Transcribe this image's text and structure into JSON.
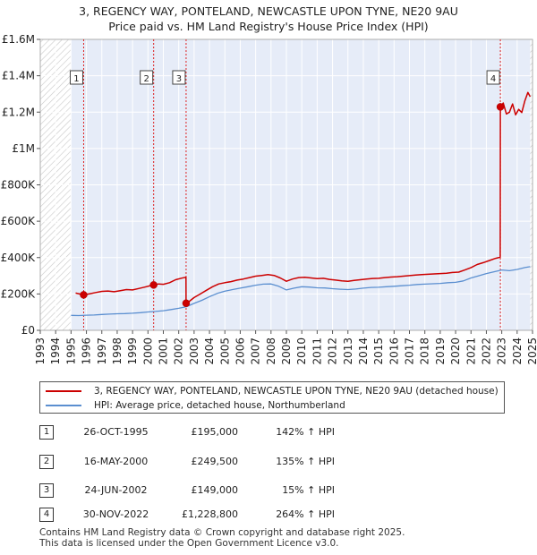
{
  "title_line1": "3, REGENCY WAY, PONTELAND, NEWCASTLE UPON TYNE, NE20 9AU",
  "title_line2": "Price paid vs. HM Land Registry's House Price Index (HPI)",
  "colors": {
    "price_line": "#cc0000",
    "hpi_line": "#5b8fd0",
    "shade": "#e6ecf8",
    "hatch": "#c8c8c8",
    "grid": "#ffffff",
    "marker_line": "#dd2222"
  },
  "chart_data": {
    "type": "line",
    "title": "3, REGENCY WAY, PONTELAND, NEWCASTLE UPON TYNE, NE20 9AU — Price paid vs. HM Land Registry's House Price Index (HPI)",
    "xlabel": "",
    "ylabel": "",
    "xlim": [
      1993,
      2025
    ],
    "ylim": [
      0,
      1600000
    ],
    "x_ticks": [
      "1993",
      "1994",
      "1995",
      "1996",
      "1997",
      "1998",
      "1999",
      "2000",
      "2001",
      "2002",
      "2003",
      "2004",
      "2005",
      "2006",
      "2007",
      "2008",
      "2009",
      "2010",
      "2011",
      "2012",
      "2013",
      "2014",
      "2015",
      "2016",
      "2017",
      "2018",
      "2019",
      "2020",
      "2021",
      "2022",
      "2023",
      "2024",
      "2025"
    ],
    "y_ticks": [
      {
        "value": 0,
        "label": "£0"
      },
      {
        "value": 200000,
        "label": "£200K"
      },
      {
        "value": 400000,
        "label": "£400K"
      },
      {
        "value": 600000,
        "label": "£600K"
      },
      {
        "value": 800000,
        "label": "£800K"
      },
      {
        "value": 1000000,
        "label": "£1M"
      },
      {
        "value": 1200000,
        "label": "£1.2M"
      },
      {
        "value": 1400000,
        "label": "£1.4M"
      },
      {
        "value": 1600000,
        "label": "£1.6M"
      }
    ],
    "data_start": 1995,
    "data_end": 2024.85,
    "series": [
      {
        "name": "3, REGENCY WAY, PONTELAND, NEWCASTLE UPON TYNE, NE20 9AU (detached house)",
        "color": "#cc0000",
        "points": [
          [
            1995.3,
            205000
          ],
          [
            1995.82,
            195000
          ],
          [
            1996.2,
            201000
          ],
          [
            1996.6,
            208000
          ],
          [
            1997,
            214000
          ],
          [
            1997.4,
            216000
          ],
          [
            1997.8,
            212000
          ],
          [
            1998.2,
            218000
          ],
          [
            1998.6,
            224000
          ],
          [
            1999,
            222000
          ],
          [
            1999.4,
            230000
          ],
          [
            1999.8,
            238000
          ],
          [
            2000.1,
            244000
          ],
          [
            2000.37,
            249500
          ],
          [
            2000.7,
            255000
          ],
          [
            2001,
            253000
          ],
          [
            2001.4,
            262000
          ],
          [
            2001.8,
            278000
          ],
          [
            2002.2,
            287000
          ],
          [
            2002.47,
            292000
          ],
          [
            2002.48,
            149000
          ],
          [
            2002.7,
            160000
          ],
          [
            2003,
            180000
          ],
          [
            2003.4,
            200000
          ],
          [
            2003.8,
            220000
          ],
          [
            2004.2,
            240000
          ],
          [
            2004.6,
            255000
          ],
          [
            2005,
            262000
          ],
          [
            2005.4,
            268000
          ],
          [
            2005.8,
            276000
          ],
          [
            2006.2,
            282000
          ],
          [
            2006.6,
            290000
          ],
          [
            2007,
            298000
          ],
          [
            2007.4,
            302000
          ],
          [
            2007.8,
            306000
          ],
          [
            2008.2,
            302000
          ],
          [
            2008.6,
            288000
          ],
          [
            2009,
            270000
          ],
          [
            2009.4,
            282000
          ],
          [
            2009.8,
            290000
          ],
          [
            2010.2,
            292000
          ],
          [
            2010.6,
            288000
          ],
          [
            2011,
            284000
          ],
          [
            2011.4,
            286000
          ],
          [
            2011.8,
            280000
          ],
          [
            2012.2,
            276000
          ],
          [
            2012.6,
            272000
          ],
          [
            2013,
            270000
          ],
          [
            2013.4,
            274000
          ],
          [
            2013.8,
            278000
          ],
          [
            2014.2,
            282000
          ],
          [
            2014.6,
            285000
          ],
          [
            2015,
            286000
          ],
          [
            2015.4,
            290000
          ],
          [
            2015.8,
            293000
          ],
          [
            2016.2,
            295000
          ],
          [
            2016.6,
            298000
          ],
          [
            2017,
            301000
          ],
          [
            2017.4,
            304000
          ],
          [
            2017.8,
            306000
          ],
          [
            2018.2,
            308000
          ],
          [
            2018.6,
            310000
          ],
          [
            2019,
            312000
          ],
          [
            2019.4,
            314000
          ],
          [
            2019.8,
            318000
          ],
          [
            2020.2,
            320000
          ],
          [
            2020.6,
            332000
          ],
          [
            2021,
            345000
          ],
          [
            2021.4,
            362000
          ],
          [
            2021.8,
            372000
          ],
          [
            2022.2,
            384000
          ],
          [
            2022.6,
            396000
          ],
          [
            2022.9,
            402000
          ],
          [
            2022.91,
            1228800
          ],
          [
            2023.1,
            1250000
          ],
          [
            2023.3,
            1190000
          ],
          [
            2023.5,
            1200000
          ],
          [
            2023.7,
            1245000
          ],
          [
            2023.9,
            1185000
          ],
          [
            2024.1,
            1215000
          ],
          [
            2024.3,
            1198000
          ],
          [
            2024.5,
            1262000
          ],
          [
            2024.7,
            1308000
          ],
          [
            2024.85,
            1285000
          ]
        ]
      },
      {
        "name": "HPI: Average price, detached house, Northumberland",
        "color": "#5b8fd0",
        "points": [
          [
            1995,
            82000
          ],
          [
            1995.5,
            81000
          ],
          [
            1996,
            83000
          ],
          [
            1996.5,
            84000
          ],
          [
            1997,
            87000
          ],
          [
            1997.5,
            89000
          ],
          [
            1998,
            91000
          ],
          [
            1998.5,
            92000
          ],
          [
            1999,
            94000
          ],
          [
            1999.5,
            97000
          ],
          [
            2000,
            101000
          ],
          [
            2000.5,
            104000
          ],
          [
            2001,
            108000
          ],
          [
            2001.5,
            114000
          ],
          [
            2002,
            121000
          ],
          [
            2002.5,
            130000
          ],
          [
            2003,
            148000
          ],
          [
            2003.5,
            165000
          ],
          [
            2004,
            185000
          ],
          [
            2004.5,
            203000
          ],
          [
            2005,
            215000
          ],
          [
            2005.5,
            224000
          ],
          [
            2006,
            232000
          ],
          [
            2006.5,
            240000
          ],
          [
            2007,
            248000
          ],
          [
            2007.5,
            254000
          ],
          [
            2008,
            255000
          ],
          [
            2008.5,
            242000
          ],
          [
            2009,
            222000
          ],
          [
            2009.5,
            232000
          ],
          [
            2010,
            240000
          ],
          [
            2010.5,
            238000
          ],
          [
            2011,
            234000
          ],
          [
            2011.5,
            233000
          ],
          [
            2012,
            229000
          ],
          [
            2012.5,
            226000
          ],
          [
            2013,
            224000
          ],
          [
            2013.5,
            227000
          ],
          [
            2014,
            232000
          ],
          [
            2014.5,
            236000
          ],
          [
            2015,
            237000
          ],
          [
            2015.5,
            240000
          ],
          [
            2016,
            242000
          ],
          [
            2016.5,
            245000
          ],
          [
            2017,
            248000
          ],
          [
            2017.5,
            252000
          ],
          [
            2018,
            254000
          ],
          [
            2018.5,
            256000
          ],
          [
            2019,
            258000
          ],
          [
            2019.5,
            262000
          ],
          [
            2020,
            264000
          ],
          [
            2020.5,
            272000
          ],
          [
            2021,
            288000
          ],
          [
            2021.5,
            300000
          ],
          [
            2022,
            312000
          ],
          [
            2022.5,
            322000
          ],
          [
            2023,
            332000
          ],
          [
            2023.5,
            328000
          ],
          [
            2024,
            335000
          ],
          [
            2024.5,
            345000
          ],
          [
            2024.85,
            350000
          ]
        ]
      }
    ],
    "sales": [
      {
        "label": "1",
        "x": 1995.82,
        "y": 195000
      },
      {
        "label": "2",
        "x": 2000.37,
        "y": 249500
      },
      {
        "label": "3",
        "x": 2002.48,
        "y": 149000
      },
      {
        "label": "4",
        "x": 2022.91,
        "y": 1228800
      }
    ]
  },
  "legend": {
    "price_label": "3, REGENCY WAY, PONTELAND, NEWCASTLE UPON TYNE, NE20 9AU (detached house)",
    "hpi_label": "HPI: Average price, detached house, Northumberland"
  },
  "sales_table": [
    {
      "num": "1",
      "date": "26-OCT-1995",
      "price": "£195,000",
      "hpi": "142% ↑ HPI"
    },
    {
      "num": "2",
      "date": "16-MAY-2000",
      "price": "£249,500",
      "hpi": "135% ↑ HPI"
    },
    {
      "num": "3",
      "date": "24-JUN-2002",
      "price": "£149,000",
      "hpi": "15% ↑ HPI"
    },
    {
      "num": "4",
      "date": "30-NOV-2022",
      "price": "£1,228,800",
      "hpi": "264% ↑ HPI"
    }
  ],
  "footer_line1": "Contains HM Land Registry data © Crown copyright and database right 2025.",
  "footer_line2": "This data is licensed under the Open Government Licence v3.0."
}
